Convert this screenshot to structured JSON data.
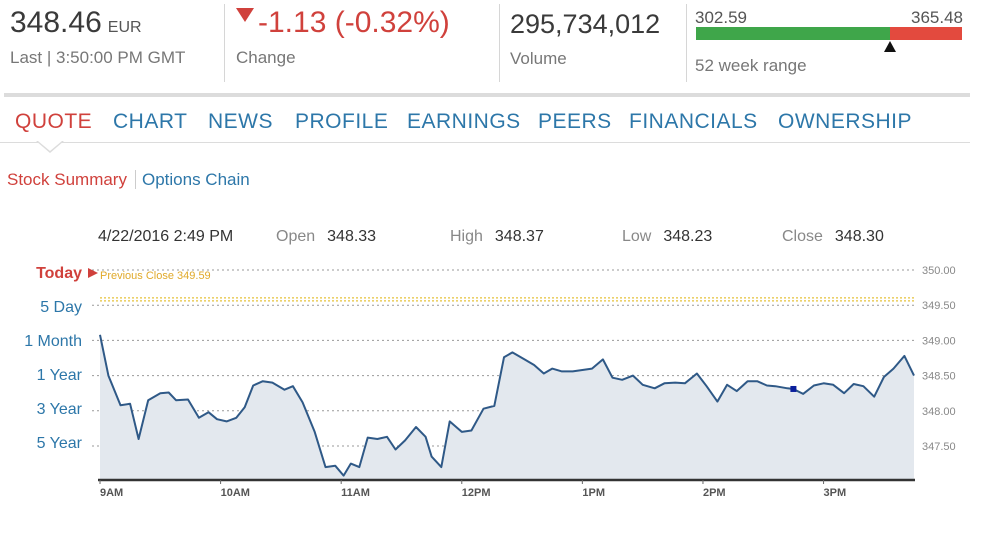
{
  "header": {
    "price": "348.46",
    "currency": "EUR",
    "last_time": "Last | 3:50:00 PM GMT",
    "change": "-1.13 (-0.32%)",
    "change_label": "Change",
    "volume": "295,734,012",
    "volume_label": "Volume",
    "range_low": "302.59",
    "range_high": "365.48",
    "range_label": "52 week range",
    "range_current_fraction": 0.73,
    "colors": {
      "up": "#3fa64a",
      "down": "#e34a3e",
      "accent": "#d0413c",
      "link": "#2d77a9"
    }
  },
  "tabs": [
    {
      "label": "QUOTE",
      "active": true
    },
    {
      "label": "CHART"
    },
    {
      "label": "NEWS"
    },
    {
      "label": "PROFILE"
    },
    {
      "label": "EARNINGS"
    },
    {
      "label": "PEERS"
    },
    {
      "label": "FINANCIALS"
    },
    {
      "label": "OWNERSHIP"
    }
  ],
  "subtabs": {
    "summary": "Stock Summary",
    "options": "Options Chain"
  },
  "ohlc": {
    "datetime": "4/22/2016 2:49 PM",
    "open_label": "Open",
    "open": "348.33",
    "high_label": "High",
    "high": "348.37",
    "low_label": "Low",
    "low": "348.23",
    "close_label": "Close",
    "close": "348.30"
  },
  "ranges": [
    "Today",
    "5 Day",
    "1 Month",
    "1 Year",
    "3 Year",
    "5 Year"
  ],
  "chart_data": {
    "type": "area",
    "annotation": "Previous Close 349.59",
    "previous_close": 349.59,
    "x_ticks": [
      "9AM",
      "10AM",
      "11AM",
      "12PM",
      "1PM",
      "2PM",
      "3PM"
    ],
    "y_ticks": [
      "350.00",
      "349.50",
      "349.00",
      "348.50",
      "348.00",
      "347.50"
    ],
    "ylim": [
      347.2,
      350.0
    ],
    "x_range_hours": [
      9,
      15.75
    ],
    "grid": true,
    "highlight_point": {
      "time": 14.75,
      "value": 348.31
    },
    "series": [
      {
        "points": [
          [
            9.0,
            349.08
          ],
          [
            9.07,
            348.5
          ],
          [
            9.17,
            348.08
          ],
          [
            9.25,
            348.1
          ],
          [
            9.32,
            347.6
          ],
          [
            9.4,
            348.15
          ],
          [
            9.5,
            348.25
          ],
          [
            9.57,
            348.26
          ],
          [
            9.63,
            348.15
          ],
          [
            9.73,
            348.16
          ],
          [
            9.82,
            347.9
          ],
          [
            9.9,
            347.98
          ],
          [
            9.97,
            347.88
          ],
          [
            10.05,
            347.85
          ],
          [
            10.13,
            347.9
          ],
          [
            10.2,
            348.05
          ],
          [
            10.27,
            348.36
          ],
          [
            10.35,
            348.42
          ],
          [
            10.43,
            348.4
          ],
          [
            10.53,
            348.3
          ],
          [
            10.6,
            348.35
          ],
          [
            10.68,
            348.12
          ],
          [
            10.78,
            347.7
          ],
          [
            10.87,
            347.2
          ],
          [
            10.95,
            347.22
          ],
          [
            11.02,
            347.08
          ],
          [
            11.08,
            347.25
          ],
          [
            11.15,
            347.2
          ],
          [
            11.22,
            347.62
          ],
          [
            11.3,
            347.6
          ],
          [
            11.38,
            347.63
          ],
          [
            11.45,
            347.45
          ],
          [
            11.53,
            347.58
          ],
          [
            11.62,
            347.77
          ],
          [
            11.7,
            347.63
          ],
          [
            11.75,
            347.35
          ],
          [
            11.83,
            347.2
          ],
          [
            11.9,
            347.85
          ],
          [
            12.0,
            347.7
          ],
          [
            12.08,
            347.72
          ],
          [
            12.18,
            348.03
          ],
          [
            12.27,
            348.07
          ],
          [
            12.35,
            348.76
          ],
          [
            12.42,
            348.83
          ],
          [
            12.52,
            348.73
          ],
          [
            12.6,
            348.65
          ],
          [
            12.68,
            348.53
          ],
          [
            12.75,
            348.6
          ],
          [
            12.83,
            348.56
          ],
          [
            12.92,
            348.56
          ],
          [
            13.0,
            348.58
          ],
          [
            13.08,
            348.6
          ],
          [
            13.17,
            348.73
          ],
          [
            13.25,
            348.47
          ],
          [
            13.33,
            348.44
          ],
          [
            13.42,
            348.5
          ],
          [
            13.5,
            348.37
          ],
          [
            13.6,
            348.32
          ],
          [
            13.68,
            348.39
          ],
          [
            13.77,
            348.4
          ],
          [
            13.85,
            348.39
          ],
          [
            13.95,
            348.53
          ],
          [
            14.03,
            348.35
          ],
          [
            14.12,
            348.13
          ],
          [
            14.2,
            348.37
          ],
          [
            14.28,
            348.28
          ],
          [
            14.37,
            348.42
          ],
          [
            14.45,
            348.42
          ],
          [
            14.53,
            348.36
          ],
          [
            14.6,
            348.35
          ],
          [
            14.7,
            348.32
          ],
          [
            14.75,
            348.31
          ],
          [
            14.83,
            348.24
          ],
          [
            14.92,
            348.36
          ],
          [
            15.0,
            348.39
          ],
          [
            15.08,
            348.37
          ],
          [
            15.17,
            348.25
          ],
          [
            15.25,
            348.38
          ],
          [
            15.33,
            348.35
          ],
          [
            15.42,
            348.2
          ],
          [
            15.5,
            348.48
          ],
          [
            15.58,
            348.6
          ],
          [
            15.67,
            348.78
          ],
          [
            15.75,
            348.5
          ]
        ]
      }
    ]
  }
}
